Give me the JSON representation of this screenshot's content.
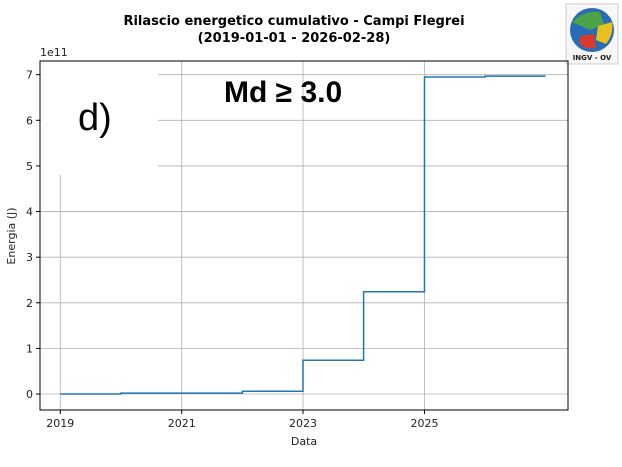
{
  "header": {
    "title_line1": "Rilascio energetico cumulativo - Campi Flegrei",
    "title_line2": "(2019-01-01 - 2026-02-28)"
  },
  "panel_tag": "d)",
  "magnitude_condition": "Md ≥ 3.0",
  "logo": {
    "text": "INGV - OV"
  },
  "chart_data": {
    "type": "line",
    "step": "post",
    "title": "Rilascio energetico cumulativo - Campi Flegrei",
    "subtitle": "(2019-01-01 - 2026-02-28)",
    "xlabel": "Data",
    "ylabel": "Energia (J)",
    "y_scale_label": "1e11",
    "xlim": [
      "2018-09-01",
      "2027-05-15"
    ],
    "ylim": [
      -0.35,
      7.3
    ],
    "x_ticks": [
      {
        "value": "2019-01-01",
        "label": "2019"
      },
      {
        "value": "2021-01-01",
        "label": "2021"
      },
      {
        "value": "2023-01-01",
        "label": "2023"
      },
      {
        "value": "2025-01-01",
        "label": "2025"
      }
    ],
    "y_ticks": [
      0,
      1,
      2,
      3,
      4,
      5,
      6,
      7
    ],
    "grid": true,
    "color": "#1f77b4",
    "series": [
      {
        "x": [
          "2019-01-01",
          "2020-01-01",
          "2022-01-01",
          "2023-01-01",
          "2024-01-01",
          "2025-01-01",
          "2026-01-01",
          "2026-12-31"
        ],
        "y": [
          0.0,
          0.02,
          0.06,
          0.74,
          2.24,
          6.95,
          6.97,
          6.97
        ]
      }
    ]
  }
}
